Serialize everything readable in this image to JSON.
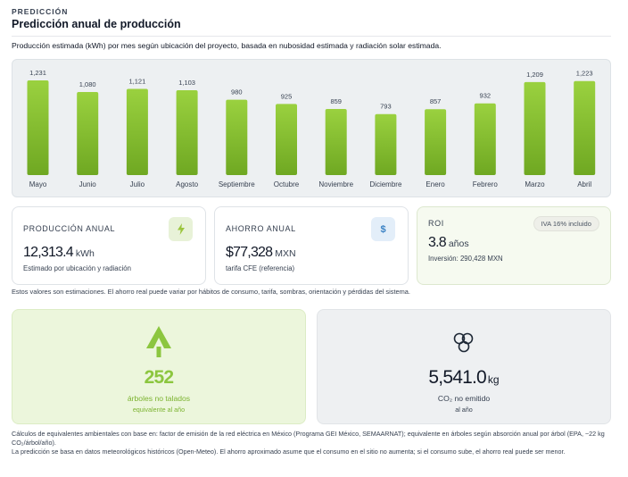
{
  "section_label": "PREDICCIÓN",
  "title": "Predicción anual de producción",
  "subtitle": "Producción estimada (kWh) por mes según ubicación del proyecto, basada en nubosidad estimada y radiación solar estimada.",
  "chart_data": {
    "type": "bar",
    "categories": [
      "Mayo",
      "Junio",
      "Julio",
      "Agosto",
      "Septiembre",
      "Octubre",
      "Noviembre",
      "Diciembre",
      "Enero",
      "Febrero",
      "Marzo",
      "Abril"
    ],
    "values": [
      1231,
      1080,
      1121,
      1103,
      980,
      925,
      859,
      793,
      857,
      932,
      1209,
      1223
    ],
    "value_labels": [
      "1,231",
      "1,080",
      "1,121",
      "1,103",
      "980",
      "925",
      "859",
      "793",
      "857",
      "932",
      "1,209",
      "1,223"
    ],
    "ylim": [
      0,
      1231
    ],
    "title": "",
    "xlabel": "",
    "ylabel": "",
    "bar_color_top": "#9ad13f",
    "bar_color_bottom": "#6fa822",
    "grid": false
  },
  "cards": {
    "production": {
      "label": "PRODUCCIÓN ANUAL",
      "value": "12,313.4",
      "unit": "kWh",
      "note": "Estimado por ubicación y radiación",
      "icon": "lightning-icon"
    },
    "savings": {
      "label": "AHORRO ANUAL",
      "value": "$77,328",
      "unit": "MXN",
      "note": "tarifa CFE (referencia)",
      "icon": "dollar-icon",
      "icon_text": "$"
    },
    "roi": {
      "label": "ROI",
      "value": "3.8",
      "unit": "años",
      "note": "Inversión: 290,428 MXN",
      "badge": "IVA 16% incluido"
    }
  },
  "estimate_note": "Estos valores son estimaciones. El ahorro real puede variar por hábitos de consumo, tarifa, sombras, orientación y pérdidas del sistema.",
  "environment": {
    "trees": {
      "value": "252",
      "label": "árboles no talados",
      "sub": "equivalente al año",
      "icon": "tree-icon"
    },
    "co2": {
      "value": "5,541.0",
      "unit": "kg",
      "label": "CO₂ no emitido",
      "sub": "al año",
      "icon": "molecule-icon"
    }
  },
  "footnotes": [
    "Cálculos de equivalentes ambientales con base en: factor de emisión de la red eléctrica en México (Programa GEI México, SEMAARNAT); equivalente en árboles según absorción anual por árbol (EPA, ~22 kg CO₂/árbol/año).",
    "La predicción se basa en datos meteorológicos históricos (Open-Meteo). El ahorro aproximado asume que el consumo en el sitio no aumenta; si el consumo sube, el ahorro real puede ser menor."
  ],
  "colors": {
    "accent_green": "#8cc63f",
    "dollar_blue": "#3b82c4"
  }
}
